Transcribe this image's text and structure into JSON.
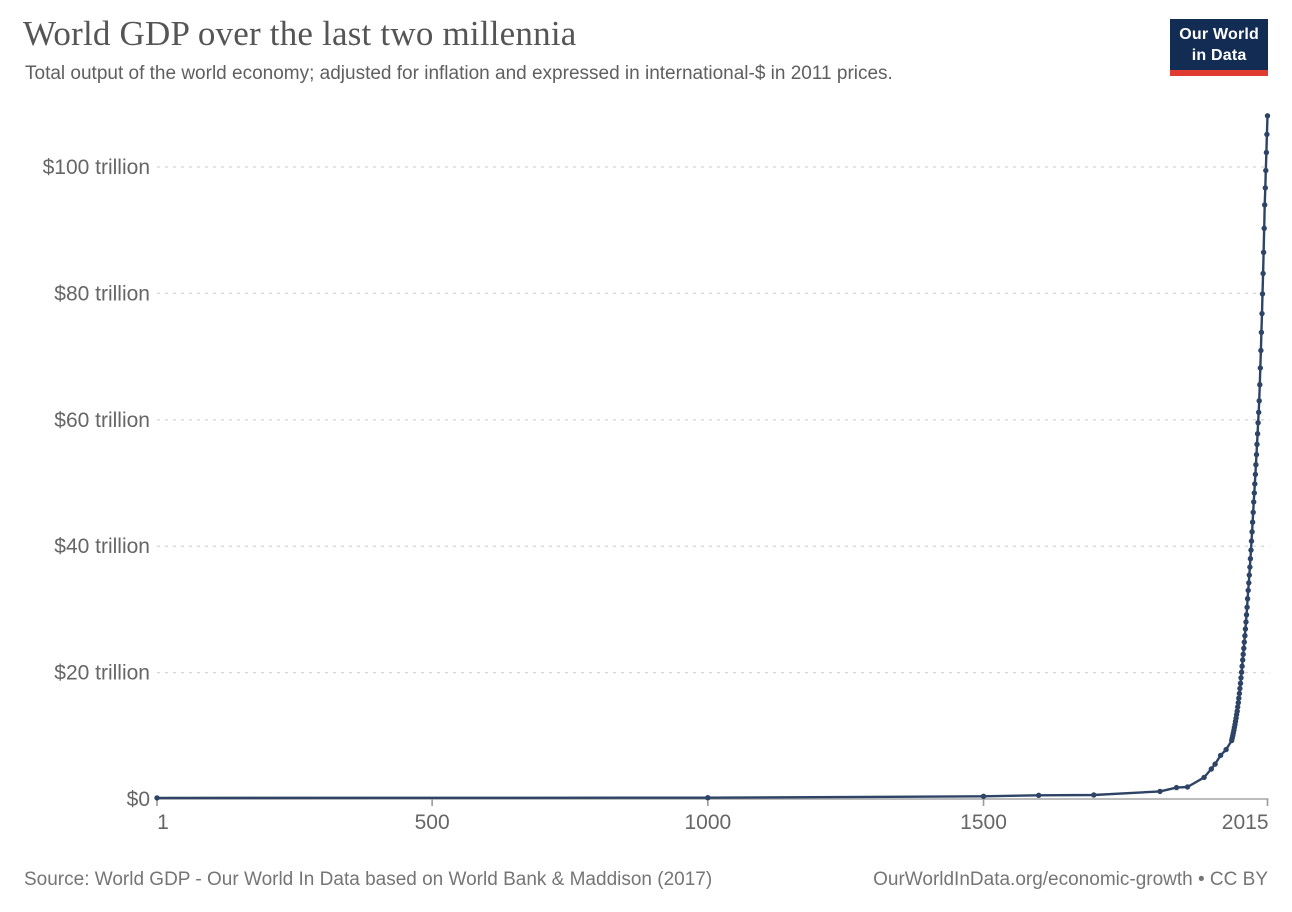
{
  "header": {
    "title": "World GDP over the last two millennia",
    "subtitle": "Total output of the world economy; adjusted for inflation and expressed in international-$ in 2011 prices."
  },
  "logo": {
    "line1": "Our World",
    "line2": "in Data",
    "bg_color": "#132c54",
    "accent_color": "#e03b30"
  },
  "footer": {
    "source": "Source: World GDP - Our World In Data based on World Bank & Maddison (2017)",
    "license": "OurWorldInData.org/economic-growth • CC BY"
  },
  "chart_data": {
    "type": "line",
    "title": "World GDP over the last two millennia",
    "xlabel": "",
    "ylabel": "",
    "xlim": [
      1,
      2015
    ],
    "ylim": [
      0,
      110
    ],
    "grid": true,
    "legend": "none",
    "line_color": "#2e4466",
    "grid_color": "#d6d6d6",
    "axis_color": "#a6a6a6",
    "tick_label_color": "#666666",
    "y_ticks": [
      {
        "value": 0,
        "label": "$0"
      },
      {
        "value": 20,
        "label": "$20 trillion"
      },
      {
        "value": 40,
        "label": "$40 trillion"
      },
      {
        "value": 60,
        "label": "$60 trillion"
      },
      {
        "value": 80,
        "label": "$80 trillion"
      },
      {
        "value": 100,
        "label": "$100 trillion"
      }
    ],
    "x_ticks": [
      {
        "value": 1,
        "label": "1",
        "tick": true
      },
      {
        "value": 500,
        "label": "500",
        "tick": true
      },
      {
        "value": 1000,
        "label": "1000",
        "tick": true
      },
      {
        "value": 1500,
        "label": "1500",
        "tick": true
      },
      {
        "value": 2015,
        "label": "2015",
        "tick": true
      }
    ],
    "series": [
      {
        "name": "World GDP (trillion international-$, 2011 prices)",
        "points": [
          [
            1,
            0.18
          ],
          [
            1000,
            0.21
          ],
          [
            1500,
            0.43
          ],
          [
            1600,
            0.58
          ],
          [
            1700,
            0.64
          ],
          [
            1820,
            1.2
          ],
          [
            1850,
            1.81
          ],
          [
            1870,
            1.9
          ],
          [
            1900,
            3.42
          ],
          [
            1913,
            4.74
          ],
          [
            1920,
            5.53
          ],
          [
            1930,
            6.9
          ],
          [
            1940,
            7.81
          ],
          [
            1950,
            9.25
          ],
          [
            1951,
            9.63
          ],
          [
            1952,
            10.03
          ],
          [
            1953,
            10.45
          ],
          [
            1954,
            10.88
          ],
          [
            1955,
            11.33
          ],
          [
            1956,
            11.8
          ],
          [
            1957,
            12.29
          ],
          [
            1958,
            12.8
          ],
          [
            1959,
            13.35
          ],
          [
            1960,
            13.9
          ],
          [
            1961,
            14.55
          ],
          [
            1962,
            15.24
          ],
          [
            1963,
            15.95
          ],
          [
            1964,
            16.7
          ],
          [
            1965,
            17.49
          ],
          [
            1966,
            18.31
          ],
          [
            1967,
            19.17
          ],
          [
            1968,
            20.07
          ],
          [
            1969,
            21.01
          ],
          [
            1970,
            22.0
          ],
          [
            1971,
            22.9
          ],
          [
            1972,
            23.84
          ],
          [
            1973,
            24.82
          ],
          [
            1974,
            25.84
          ],
          [
            1975,
            26.9
          ],
          [
            1976,
            28.0
          ],
          [
            1977,
            29.15
          ],
          [
            1978,
            30.35
          ],
          [
            1979,
            31.7
          ],
          [
            1980,
            33.0
          ],
          [
            1981,
            34.19
          ],
          [
            1982,
            35.42
          ],
          [
            1983,
            36.7
          ],
          [
            1984,
            38.02
          ],
          [
            1985,
            39.39
          ],
          [
            1986,
            40.81
          ],
          [
            1987,
            42.28
          ],
          [
            1988,
            43.8
          ],
          [
            1989,
            45.37
          ],
          [
            1990,
            47.0
          ],
          [
            1991,
            48.41
          ],
          [
            1992,
            49.86
          ],
          [
            1993,
            51.36
          ],
          [
            1994,
            52.9
          ],
          [
            1995,
            54.49
          ],
          [
            1996,
            56.12
          ],
          [
            1997,
            57.8
          ],
          [
            1998,
            59.54
          ],
          [
            1999,
            61.18
          ],
          [
            2000,
            63.0
          ],
          [
            2001,
            65.55
          ],
          [
            2002,
            68.2
          ],
          [
            2003,
            70.96
          ],
          [
            2004,
            73.83
          ],
          [
            2005,
            76.81
          ],
          [
            2006,
            79.92
          ],
          [
            2007,
            83.15
          ],
          [
            2008,
            86.51
          ],
          [
            2009,
            90.3
          ],
          [
            2010,
            94.0
          ],
          [
            2011,
            96.69
          ],
          [
            2012,
            99.45
          ],
          [
            2013,
            102.29
          ],
          [
            2014,
            105.16
          ],
          [
            2015,
            108.1
          ]
        ]
      }
    ]
  }
}
